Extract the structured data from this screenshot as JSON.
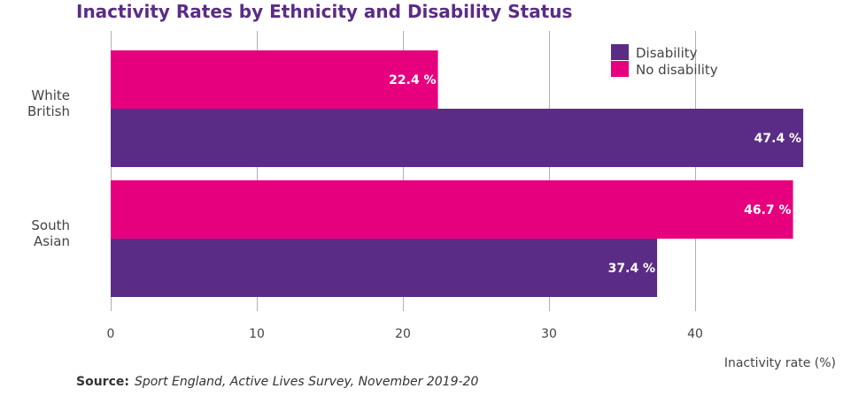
{
  "chart_data": {
    "type": "bar",
    "orientation": "horizontal",
    "title": "Inactivity Rates by Ethnicity and Disability Status",
    "xlabel": "Inactivity rate (%)",
    "ylabel": "",
    "categories": [
      "White British",
      "South Asian"
    ],
    "category_lines": [
      [
        "White",
        "British"
      ],
      [
        "South",
        "Asian"
      ]
    ],
    "series": [
      {
        "name": "No disability",
        "color": "#e6007e",
        "values": [
          22.4,
          46.7
        ],
        "labels": [
          "22.4 %",
          "46.7 %"
        ]
      },
      {
        "name": "Disability",
        "color": "#5b2c86",
        "values": [
          47.4,
          37.4
        ],
        "labels": [
          "47.4 %",
          "37.4 %"
        ]
      }
    ],
    "legend_order": [
      "Disability",
      "No disability"
    ],
    "xlim": [
      0,
      49
    ],
    "xticks": [
      0,
      10,
      20,
      30,
      40
    ],
    "grid": "vertical",
    "legend_position": "top-right"
  },
  "source": {
    "label": "Source:",
    "text": "Sport England, Active Lives Survey, November 2019-20"
  }
}
